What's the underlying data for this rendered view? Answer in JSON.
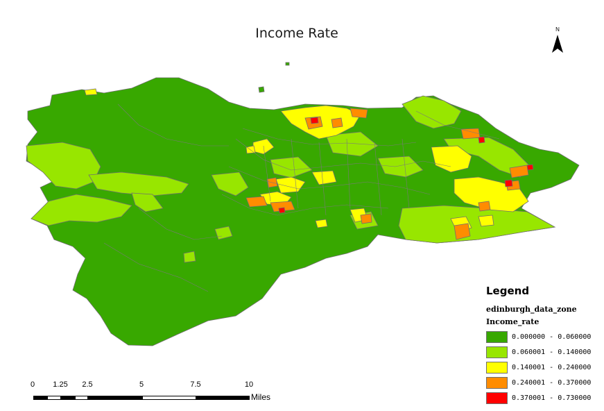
{
  "title": "Income Rate",
  "north_arrow": {
    "label": "N",
    "icon": "north-arrow-icon"
  },
  "legend": {
    "title": "Legend",
    "layer": "edinburgh_data_zone",
    "field": "Income_rate",
    "classes": [
      {
        "range": "0.000000 - 0.060000",
        "color": "#38a800"
      },
      {
        "range": "0.060001 - 0.140000",
        "color": "#98e600"
      },
      {
        "range": "0.140001 - 0.240000",
        "color": "#ffff00"
      },
      {
        "range": "0.240001 - 0.370000",
        "color": "#ff8c00"
      },
      {
        "range": "0.370001 - 0.730000",
        "color": "#ff0000"
      }
    ]
  },
  "scale_bar": {
    "ticks": [
      "0",
      "1.25",
      "2.5",
      "5",
      "7.5",
      "10"
    ],
    "tick_values": [
      0,
      1.25,
      2.5,
      5,
      7.5,
      10
    ],
    "units": "Miles"
  },
  "colors": {
    "boundary": "#7a7a7a",
    "background": "#ffffff"
  }
}
